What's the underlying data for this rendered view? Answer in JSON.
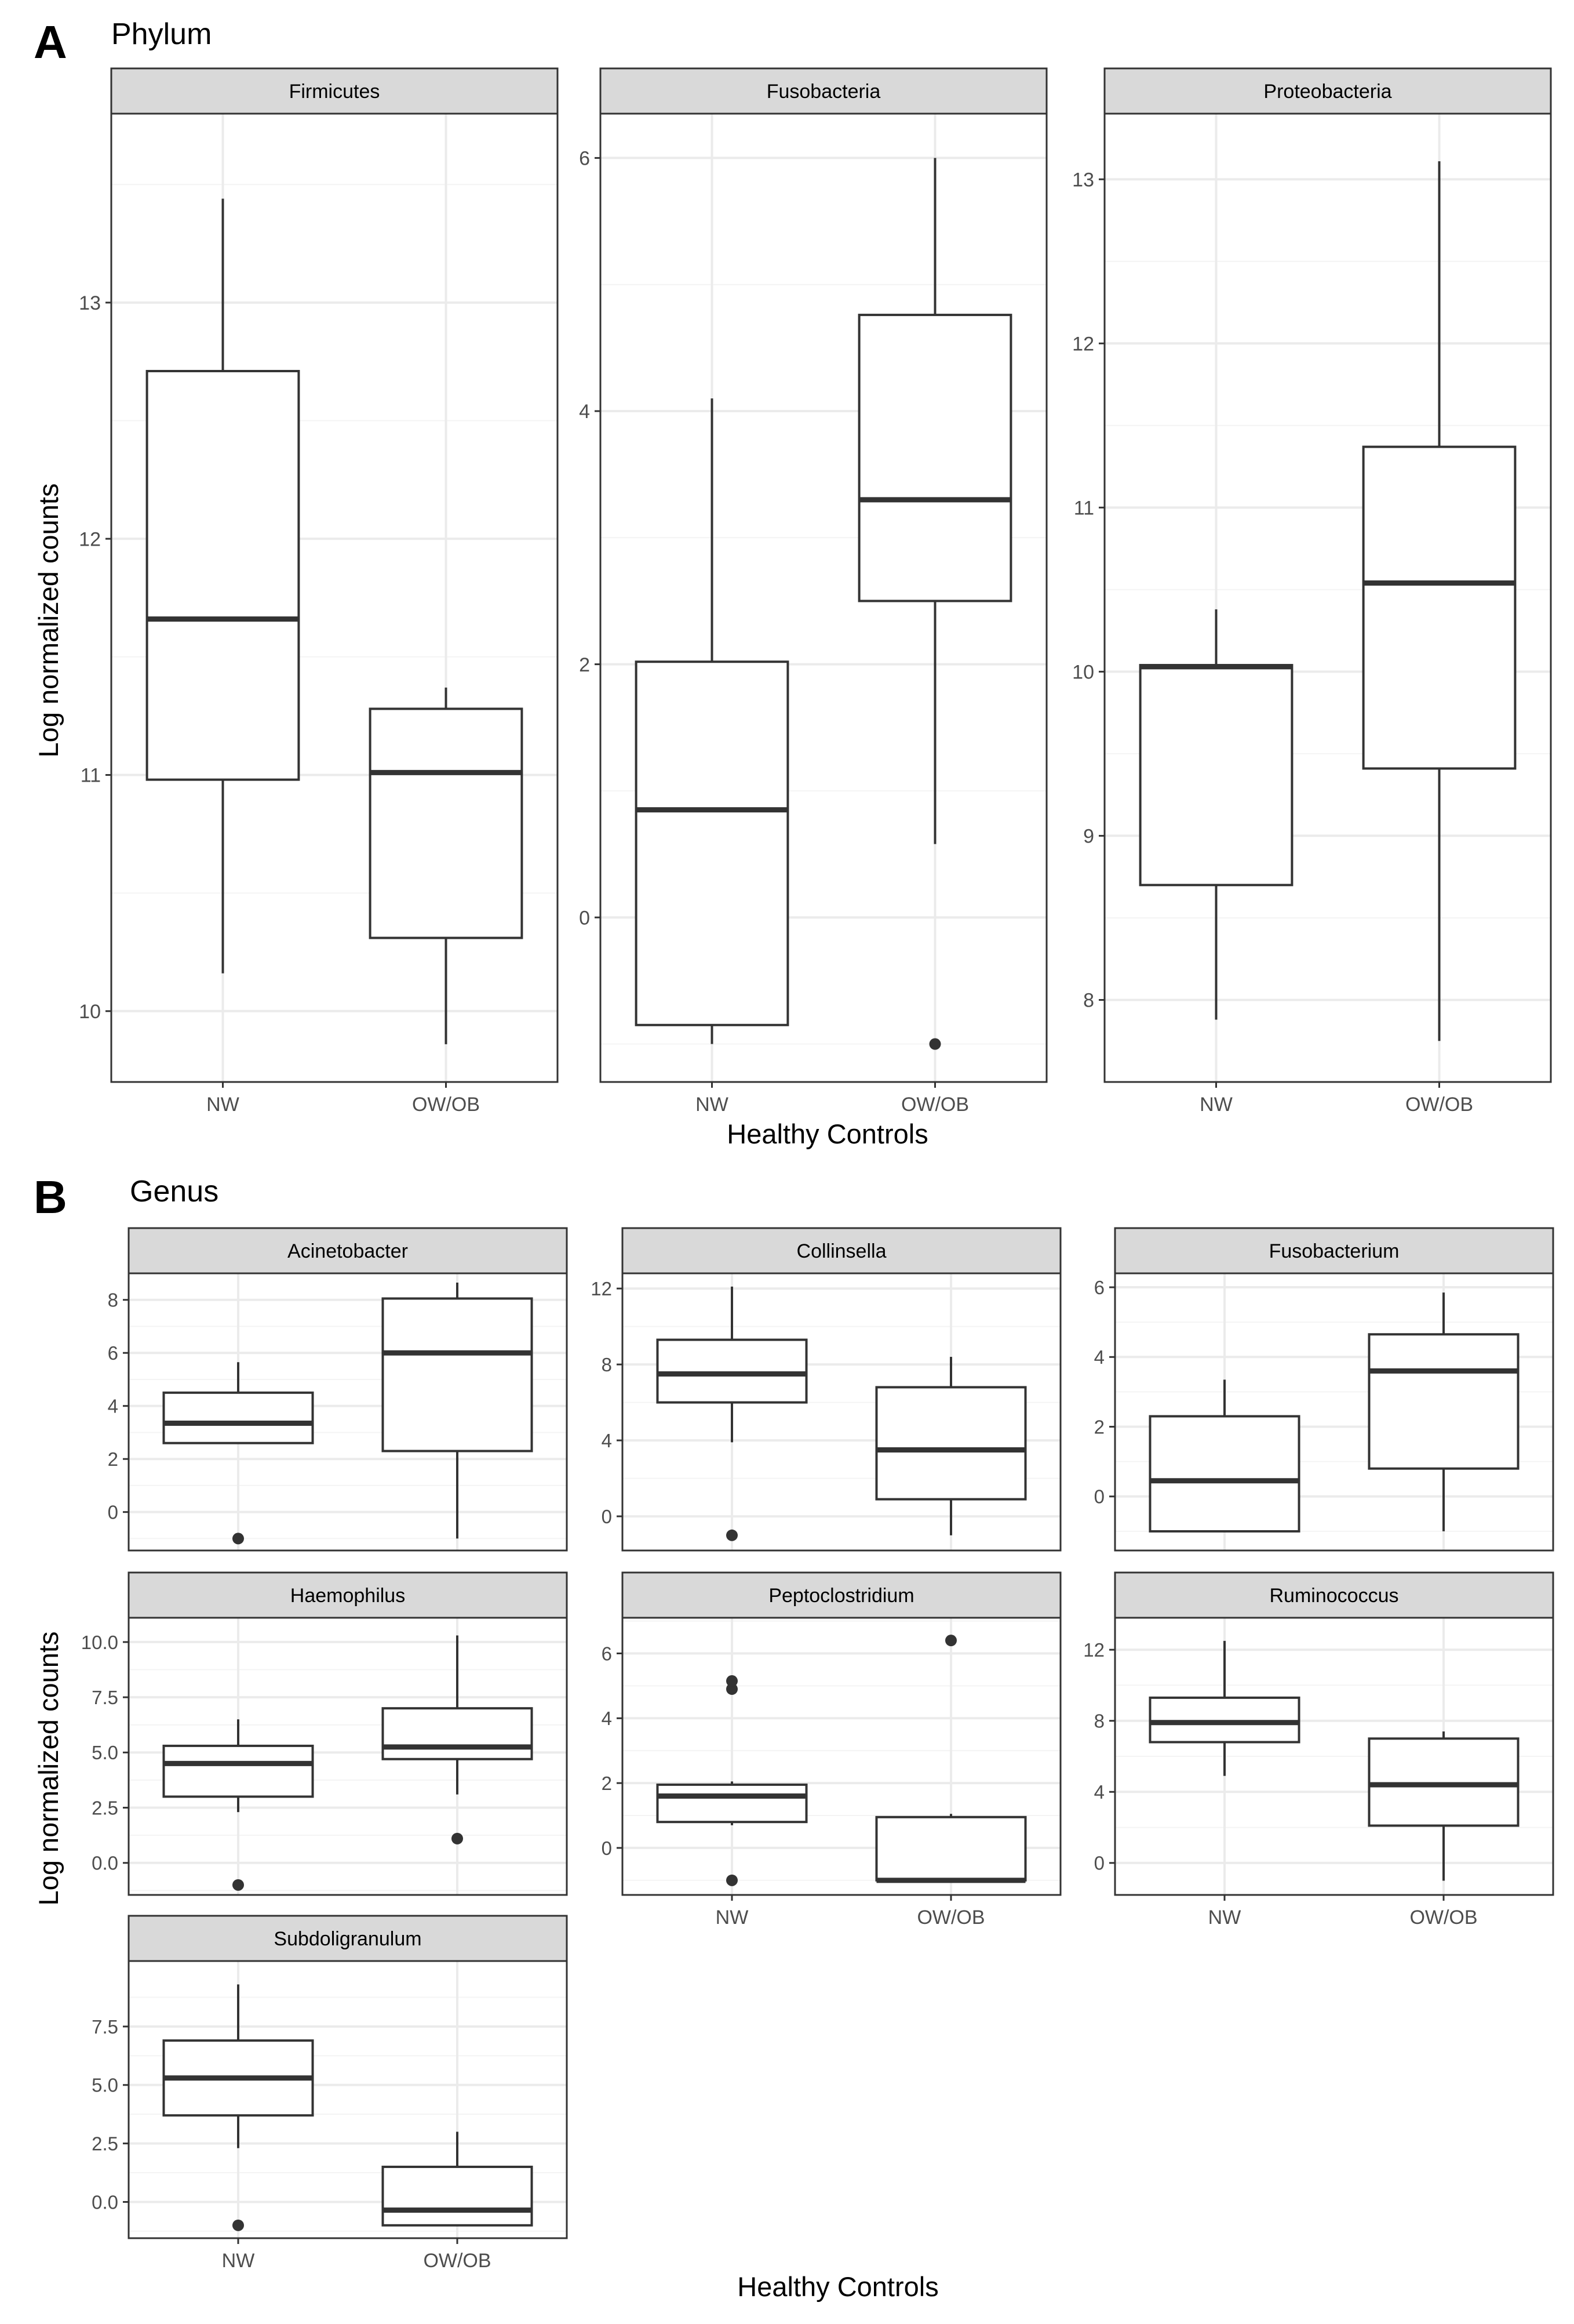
{
  "figure": {
    "panel_a": {
      "letter": "A",
      "title": "Phylum",
      "xlabel": "Healthy Controls",
      "ylabel": "Log normalized counts"
    },
    "panel_b": {
      "letter": "B",
      "title": "Genus",
      "xlabel": "Healthy Controls",
      "ylabel": "Log normalized counts"
    }
  },
  "colors": {
    "strip_fill": "#d9d9d9",
    "box_stroke": "#333333",
    "grid_major": "#ebebeb",
    "grid_minor": "#f4f4f4",
    "panel_border": "#333333",
    "text": "#000000",
    "tick_text": "#4d4d4d"
  },
  "chart_data": [
    {
      "type": "box",
      "group": "Phylum",
      "title": "Firmicutes",
      "categories": [
        "NW",
        "OW/OB"
      ],
      "ylim": [
        9.7,
        13.8
      ],
      "yticks": [
        10,
        11,
        12,
        13
      ],
      "ytick_labels": [
        "10",
        "11",
        "12",
        "13"
      ],
      "boxes": [
        {
          "category": "NW",
          "whisker_low": 10.16,
          "q1": 10.98,
          "median": 11.66,
          "q3": 12.71,
          "whisker_high": 13.44,
          "outliers": []
        },
        {
          "category": "OW/OB",
          "whisker_low": 9.86,
          "q1": 10.31,
          "median": 11.01,
          "q3": 11.28,
          "whisker_high": 11.37,
          "outliers": []
        }
      ]
    },
    {
      "type": "box",
      "group": "Phylum",
      "title": "Fusobacteria",
      "categories": [
        "NW",
        "OW/OB"
      ],
      "ylim": [
        -1.3,
        6.35
      ],
      "yticks": [
        0,
        2,
        4,
        6
      ],
      "ytick_labels": [
        "0",
        "2",
        "4",
        "6"
      ],
      "boxes": [
        {
          "category": "NW",
          "whisker_low": -1.0,
          "q1": -0.85,
          "median": 0.85,
          "q3": 2.02,
          "whisker_high": 4.1,
          "outliers": []
        },
        {
          "category": "OW/OB",
          "whisker_low": 0.58,
          "q1": 2.5,
          "median": 3.3,
          "q3": 4.76,
          "whisker_high": 6.0,
          "outliers": [
            -1.0
          ]
        }
      ]
    },
    {
      "type": "box",
      "group": "Phylum",
      "title": "Proteobacteria",
      "categories": [
        "NW",
        "OW/OB"
      ],
      "ylim": [
        7.5,
        13.4
      ],
      "yticks": [
        8,
        9,
        10,
        11,
        12,
        13
      ],
      "ytick_labels": [
        "8",
        "9",
        "10",
        "11",
        "12",
        "13"
      ],
      "boxes": [
        {
          "category": "NW",
          "whisker_low": 7.88,
          "q1": 8.7,
          "median": 10.03,
          "q3": 10.04,
          "whisker_high": 10.38,
          "outliers": []
        },
        {
          "category": "OW/OB",
          "whisker_low": 7.75,
          "q1": 9.41,
          "median": 10.54,
          "q3": 11.37,
          "whisker_high": 13.11,
          "outliers": []
        }
      ]
    },
    {
      "type": "box",
      "group": "Genus",
      "title": "Acinetobacter",
      "categories": [
        "NW",
        "OW/OB"
      ],
      "ylim": [
        -1.45,
        9.0
      ],
      "yticks": [
        0,
        2,
        4,
        6,
        8
      ],
      "ytick_labels": [
        "0",
        "2",
        "4",
        "6",
        "8"
      ],
      "boxes": [
        {
          "category": "NW",
          "whisker_low": 2.6,
          "q1": 2.6,
          "median": 3.35,
          "q3": 4.5,
          "whisker_high": 5.65,
          "outliers": [
            -1.0
          ]
        },
        {
          "category": "OW/OB",
          "whisker_low": -1.0,
          "q1": 2.3,
          "median": 6.0,
          "q3": 8.05,
          "whisker_high": 8.65,
          "outliers": []
        }
      ]
    },
    {
      "type": "box",
      "group": "Genus",
      "title": "Collinsella",
      "categories": [
        "NW",
        "OW/OB"
      ],
      "ylim": [
        -1.8,
        12.8
      ],
      "yticks": [
        0,
        4,
        8,
        12
      ],
      "ytick_labels": [
        "0",
        "4",
        "8",
        "12"
      ],
      "boxes": [
        {
          "category": "NW",
          "whisker_low": 3.9,
          "q1": 6.0,
          "median": 7.5,
          "q3": 9.3,
          "whisker_high": 12.1,
          "outliers": [
            -1.0
          ]
        },
        {
          "category": "OW/OB",
          "whisker_low": -1.0,
          "q1": 0.9,
          "median": 3.5,
          "q3": 6.8,
          "whisker_high": 8.4,
          "outliers": []
        }
      ]
    },
    {
      "type": "box",
      "group": "Genus",
      "title": "Fusobacterium",
      "categories": [
        "NW",
        "OW/OB"
      ],
      "ylim": [
        -1.55,
        6.4
      ],
      "yticks": [
        0,
        2,
        4,
        6
      ],
      "ytick_labels": [
        "0",
        "2",
        "4",
        "6"
      ],
      "boxes": [
        {
          "category": "NW",
          "whisker_low": -1.0,
          "q1": -1.0,
          "median": 0.45,
          "q3": 2.3,
          "whisker_high": 3.35,
          "outliers": []
        },
        {
          "category": "OW/OB",
          "whisker_low": -1.0,
          "q1": 0.8,
          "median": 3.6,
          "q3": 4.65,
          "whisker_high": 5.85,
          "outliers": []
        }
      ]
    },
    {
      "type": "box",
      "group": "Genus",
      "title": "Haemophilus",
      "categories": [
        "NW",
        "OW/OB"
      ],
      "ylim": [
        -1.45,
        11.1
      ],
      "yticks": [
        0,
        2.5,
        5,
        7.5,
        10
      ],
      "ytick_labels": [
        "0.0",
        "2.5",
        "5.0",
        "7.5",
        "10.0"
      ],
      "boxes": [
        {
          "category": "NW",
          "whisker_low": 2.3,
          "q1": 3.0,
          "median": 4.5,
          "q3": 5.3,
          "whisker_high": 6.5,
          "outliers": [
            -1.0
          ]
        },
        {
          "category": "OW/OB",
          "whisker_low": 3.1,
          "q1": 4.7,
          "median": 5.25,
          "q3": 7.0,
          "whisker_high": 10.3,
          "outliers": [
            1.1
          ]
        }
      ]
    },
    {
      "type": "box",
      "group": "Genus",
      "title": "Peptoclostridium",
      "categories": [
        "NW",
        "OW/OB"
      ],
      "ylim": [
        -1.45,
        7.1
      ],
      "yticks": [
        0,
        2,
        4,
        6
      ],
      "ytick_labels": [
        "0",
        "2",
        "4",
        "6"
      ],
      "boxes": [
        {
          "category": "NW",
          "whisker_low": 0.7,
          "q1": 0.8,
          "median": 1.6,
          "q3": 1.95,
          "whisker_high": 2.05,
          "outliers": [
            -1.0,
            4.9,
            5.15
          ]
        },
        {
          "category": "OW/OB",
          "whisker_low": -1.0,
          "q1": -1.0,
          "median": -1.0,
          "q3": 0.95,
          "whisker_high": 1.05,
          "outliers": [
            6.4
          ]
        }
      ]
    },
    {
      "type": "box",
      "group": "Genus",
      "title": "Ruminococcus",
      "categories": [
        "NW",
        "OW/OB"
      ],
      "ylim": [
        -1.8,
        13.8
      ],
      "yticks": [
        0,
        4,
        8,
        12
      ],
      "ytick_labels": [
        "0",
        "4",
        "8",
        "12"
      ],
      "boxes": [
        {
          "category": "NW",
          "whisker_low": 4.9,
          "q1": 6.8,
          "median": 7.9,
          "q3": 9.3,
          "whisker_high": 12.5,
          "outliers": []
        },
        {
          "category": "OW/OB",
          "whisker_low": -1.0,
          "q1": 2.1,
          "median": 4.4,
          "q3": 7.0,
          "whisker_high": 7.4,
          "outliers": []
        }
      ]
    },
    {
      "type": "box",
      "group": "Genus",
      "title": "Subdoligranulum",
      "categories": [
        "NW",
        "OW/OB"
      ],
      "ylim": [
        -1.55,
        10.3
      ],
      "yticks": [
        0,
        2.5,
        5,
        7.5
      ],
      "ytick_labels": [
        "0.0",
        "2.5",
        "5.0",
        "7.5"
      ],
      "boxes": [
        {
          "category": "NW",
          "whisker_low": 2.3,
          "q1": 3.7,
          "median": 5.3,
          "q3": 6.9,
          "whisker_high": 9.3,
          "outliers": [
            -1.0
          ]
        },
        {
          "category": "OW/OB",
          "whisker_low": -1.0,
          "q1": -1.0,
          "median": -0.35,
          "q3": 1.5,
          "whisker_high": 3.0,
          "outliers": []
        }
      ]
    }
  ]
}
